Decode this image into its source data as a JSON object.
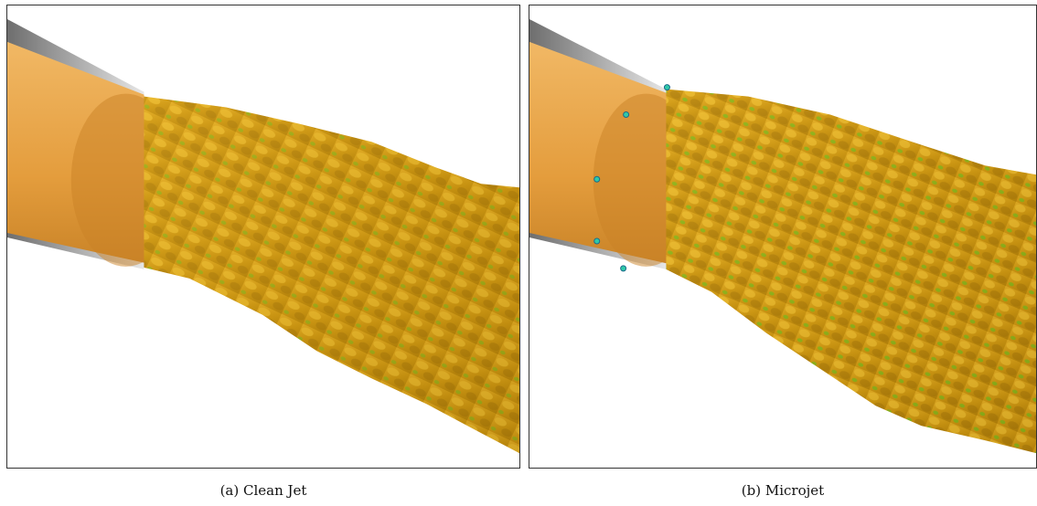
{
  "figure": {
    "panels": [
      {
        "caption": "(a) Clean Jet"
      },
      {
        "caption": "(b) Microjet"
      }
    ],
    "colors": {
      "nozzle": "#e8a850",
      "nozzle_dark": "#b8761c",
      "cone": "#9a9a9a",
      "flow_gold": "#d9a21a",
      "flow_green": "#3ec81e"
    }
  }
}
